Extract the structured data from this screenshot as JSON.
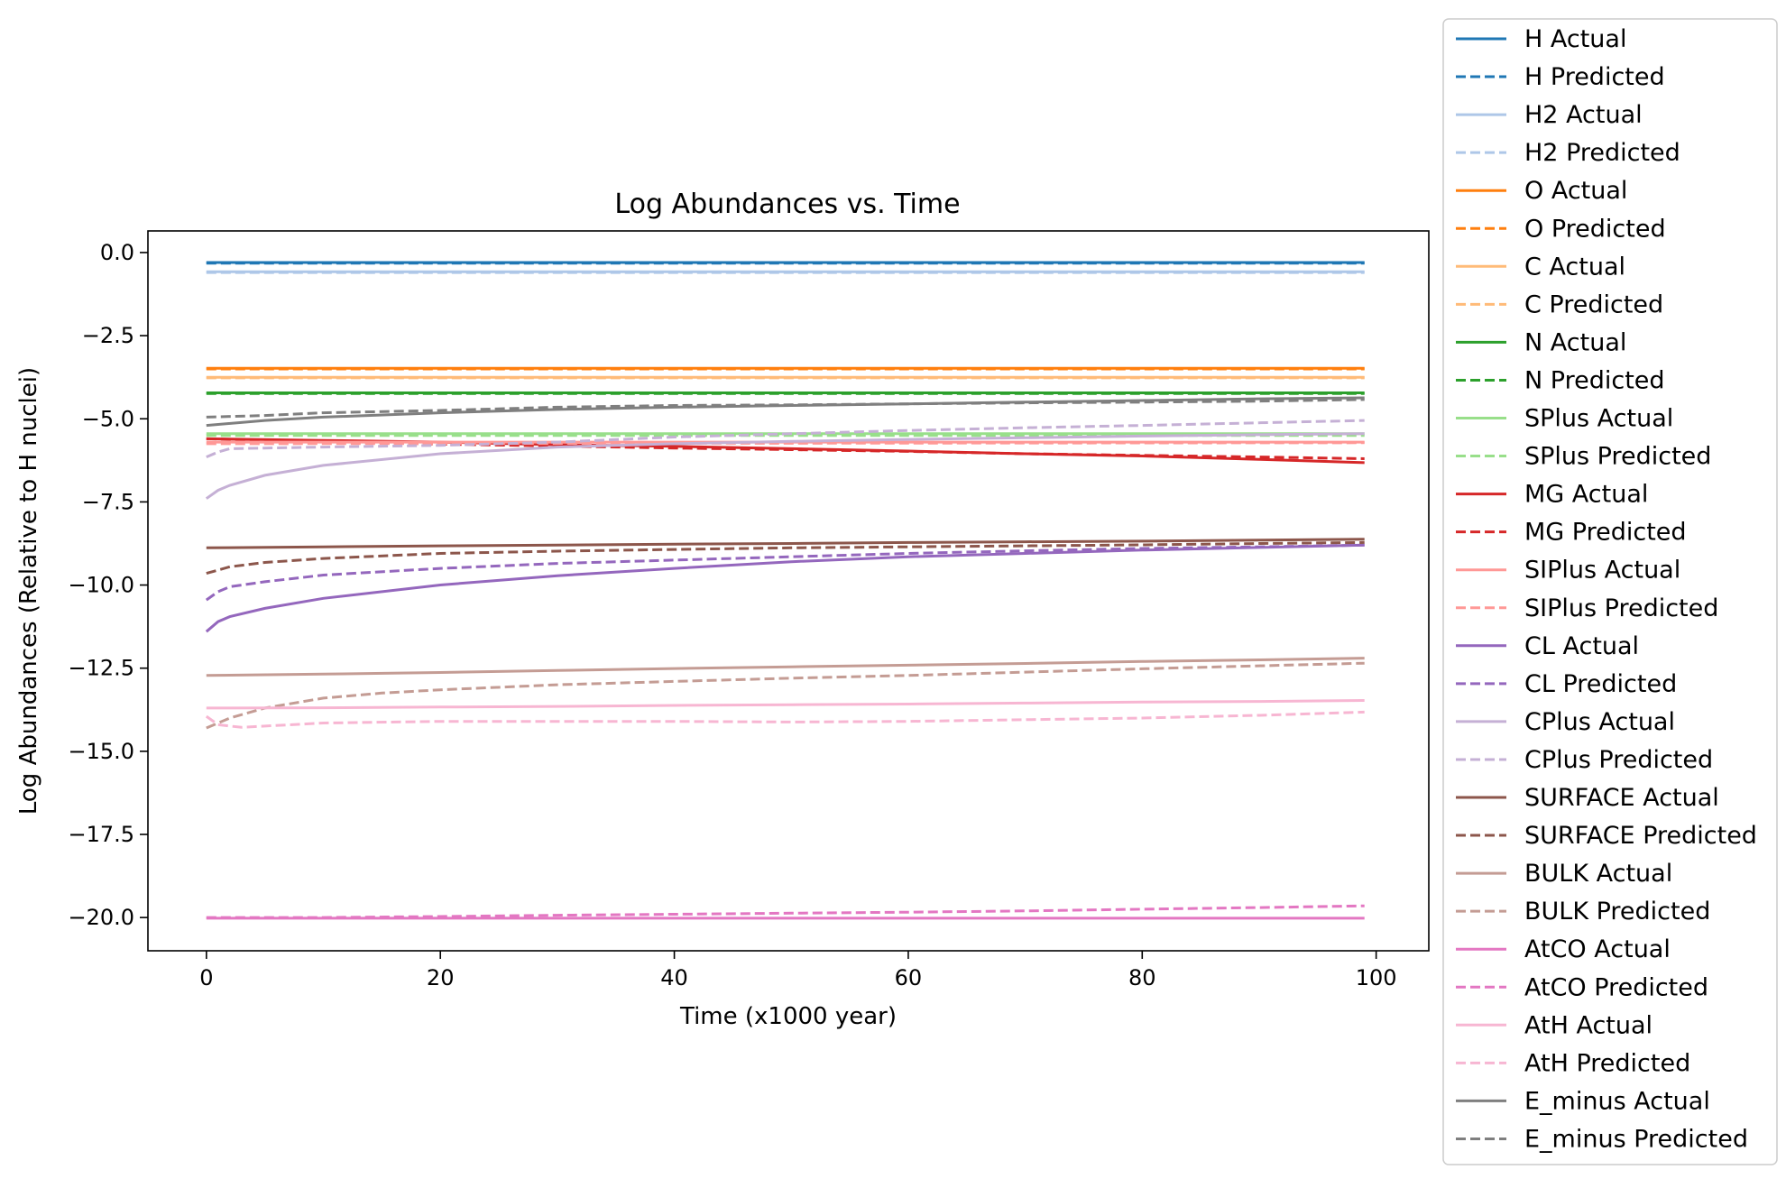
{
  "chart_data": {
    "type": "line",
    "title": "Log Abundances vs. Time",
    "xlabel": "Time (x1000 year)",
    "ylabel": "Log Abundances (Relative to H nuclei)",
    "xlim": [
      -5,
      104.5
    ],
    "ylim": [
      -21.0,
      0.65
    ],
    "xticks": [
      0,
      20,
      40,
      60,
      80,
      100
    ],
    "xtick_labels": [
      "0",
      "20",
      "40",
      "60",
      "80",
      "100"
    ],
    "yticks": [
      0.0,
      -2.5,
      -5.0,
      -7.5,
      -10.0,
      -12.5,
      -15.0,
      -17.5,
      -20.0
    ],
    "ytick_labels": [
      "0.0",
      "−2.5",
      "−5.0",
      "−7.5",
      "−10.0",
      "−12.5",
      "−15.0",
      "−17.5",
      "−20.0"
    ],
    "grid": false,
    "legend_position": "outside-right",
    "series": [
      {
        "name": "H Actual",
        "color": "#1f77b4",
        "style": "solid",
        "points": [
          [
            0,
            -0.3
          ],
          [
            99,
            -0.3
          ]
        ]
      },
      {
        "name": "H Predicted",
        "color": "#1f77b4",
        "style": "dashed",
        "points": [
          [
            0,
            -0.32
          ],
          [
            99,
            -0.32
          ]
        ]
      },
      {
        "name": "H2 Actual",
        "color": "#aec7e8",
        "style": "solid",
        "points": [
          [
            0,
            -0.58
          ],
          [
            99,
            -0.58
          ]
        ]
      },
      {
        "name": "H2 Predicted",
        "color": "#aec7e8",
        "style": "dashed",
        "points": [
          [
            0,
            -0.6
          ],
          [
            99,
            -0.6
          ]
        ]
      },
      {
        "name": "O Actual",
        "color": "#ff7f0e",
        "style": "solid",
        "points": [
          [
            0,
            -3.48
          ],
          [
            99,
            -3.48
          ]
        ]
      },
      {
        "name": "O Predicted",
        "color": "#ff7f0e",
        "style": "dashed",
        "points": [
          [
            0,
            -3.5
          ],
          [
            99,
            -3.5
          ]
        ]
      },
      {
        "name": "C Actual",
        "color": "#ffbb78",
        "style": "solid",
        "points": [
          [
            0,
            -3.75
          ],
          [
            99,
            -3.75
          ]
        ]
      },
      {
        "name": "C Predicted",
        "color": "#ffbb78",
        "style": "dashed",
        "points": [
          [
            0,
            -3.77
          ],
          [
            99,
            -3.77
          ]
        ]
      },
      {
        "name": "N Actual",
        "color": "#2ca02c",
        "style": "solid",
        "points": [
          [
            0,
            -4.22
          ],
          [
            99,
            -4.22
          ]
        ]
      },
      {
        "name": "N Predicted",
        "color": "#2ca02c",
        "style": "dashed",
        "points": [
          [
            0,
            -4.24
          ],
          [
            99,
            -4.24
          ]
        ]
      },
      {
        "name": "SPlus Actual",
        "color": "#98df8a",
        "style": "solid",
        "points": [
          [
            0,
            -5.45
          ],
          [
            99,
            -5.45
          ]
        ]
      },
      {
        "name": "SPlus Predicted",
        "color": "#98df8a",
        "style": "dashed",
        "points": [
          [
            0,
            -5.5
          ],
          [
            99,
            -5.5
          ]
        ]
      },
      {
        "name": "MG Actual",
        "color": "#d62728",
        "style": "solid",
        "points": [
          [
            0,
            -5.6
          ],
          [
            10,
            -5.65
          ],
          [
            20,
            -5.7
          ],
          [
            30,
            -5.78
          ],
          [
            40,
            -5.83
          ],
          [
            50,
            -5.9
          ],
          [
            60,
            -5.97
          ],
          [
            70,
            -6.05
          ],
          [
            80,
            -6.12
          ],
          [
            90,
            -6.22
          ],
          [
            99,
            -6.32
          ]
        ]
      },
      {
        "name": "MG Predicted",
        "color": "#d62728",
        "style": "dashed",
        "points": [
          [
            0,
            -5.6
          ],
          [
            10,
            -5.68
          ],
          [
            20,
            -5.76
          ],
          [
            30,
            -5.82
          ],
          [
            40,
            -5.88
          ],
          [
            50,
            -5.93
          ],
          [
            60,
            -5.98
          ],
          [
            70,
            -6.05
          ],
          [
            80,
            -6.1
          ],
          [
            90,
            -6.15
          ],
          [
            99,
            -6.2
          ]
        ]
      },
      {
        "name": "SIPlus Actual",
        "color": "#ff9896",
        "style": "solid",
        "points": [
          [
            0,
            -5.7
          ],
          [
            99,
            -5.7
          ]
        ]
      },
      {
        "name": "SIPlus Predicted",
        "color": "#ff9896",
        "style": "dashed",
        "points": [
          [
            0,
            -5.75
          ],
          [
            99,
            -5.72
          ]
        ]
      },
      {
        "name": "CL Actual",
        "color": "#9467bd",
        "style": "solid",
        "points": [
          [
            0,
            -11.4
          ],
          [
            1,
            -11.1
          ],
          [
            2,
            -10.95
          ],
          [
            5,
            -10.7
          ],
          [
            10,
            -10.4
          ],
          [
            20,
            -10.0
          ],
          [
            30,
            -9.72
          ],
          [
            40,
            -9.5
          ],
          [
            50,
            -9.3
          ],
          [
            60,
            -9.15
          ],
          [
            70,
            -9.05
          ],
          [
            80,
            -8.95
          ],
          [
            90,
            -8.87
          ],
          [
            99,
            -8.8
          ]
        ]
      },
      {
        "name": "CL Predicted",
        "color": "#9467bd",
        "style": "dashed",
        "points": [
          [
            0,
            -10.45
          ],
          [
            1,
            -10.2
          ],
          [
            2,
            -10.05
          ],
          [
            5,
            -9.9
          ],
          [
            10,
            -9.7
          ],
          [
            20,
            -9.5
          ],
          [
            30,
            -9.35
          ],
          [
            40,
            -9.25
          ],
          [
            50,
            -9.15
          ],
          [
            60,
            -9.05
          ],
          [
            70,
            -8.97
          ],
          [
            80,
            -8.9
          ],
          [
            90,
            -8.85
          ],
          [
            99,
            -8.8
          ]
        ]
      },
      {
        "name": "CPlus Actual",
        "color": "#c5b0d5",
        "style": "solid",
        "points": [
          [
            0,
            -7.4
          ],
          [
            1,
            -7.15
          ],
          [
            2,
            -7.0
          ],
          [
            5,
            -6.7
          ],
          [
            10,
            -6.4
          ],
          [
            20,
            -6.05
          ],
          [
            30,
            -5.85
          ],
          [
            40,
            -5.75
          ],
          [
            50,
            -5.68
          ],
          [
            60,
            -5.62
          ],
          [
            70,
            -5.57
          ],
          [
            80,
            -5.52
          ],
          [
            90,
            -5.48
          ],
          [
            99,
            -5.45
          ]
        ]
      },
      {
        "name": "CPlus Predicted",
        "color": "#c5b0d5",
        "style": "dashed",
        "points": [
          [
            0,
            -6.15
          ],
          [
            1,
            -6.0
          ],
          [
            2,
            -5.9
          ],
          [
            5,
            -5.88
          ],
          [
            10,
            -5.85
          ],
          [
            20,
            -5.8
          ],
          [
            30,
            -5.7
          ],
          [
            40,
            -5.55
          ],
          [
            50,
            -5.45
          ],
          [
            60,
            -5.35
          ],
          [
            70,
            -5.27
          ],
          [
            80,
            -5.2
          ],
          [
            90,
            -5.12
          ],
          [
            99,
            -5.05
          ]
        ]
      },
      {
        "name": "SURFACE Actual",
        "color": "#8c564b",
        "style": "solid",
        "points": [
          [
            0,
            -8.88
          ],
          [
            10,
            -8.85
          ],
          [
            20,
            -8.82
          ],
          [
            30,
            -8.8
          ],
          [
            40,
            -8.77
          ],
          [
            50,
            -8.75
          ],
          [
            60,
            -8.72
          ],
          [
            70,
            -8.7
          ],
          [
            80,
            -8.68
          ],
          [
            90,
            -8.65
          ],
          [
            99,
            -8.62
          ]
        ]
      },
      {
        "name": "SURFACE Predicted",
        "color": "#8c564b",
        "style": "dashed",
        "points": [
          [
            0,
            -9.65
          ],
          [
            1,
            -9.55
          ],
          [
            2,
            -9.45
          ],
          [
            5,
            -9.32
          ],
          [
            10,
            -9.2
          ],
          [
            20,
            -9.05
          ],
          [
            30,
            -8.98
          ],
          [
            40,
            -8.93
          ],
          [
            50,
            -8.88
          ],
          [
            60,
            -8.85
          ],
          [
            70,
            -8.82
          ],
          [
            80,
            -8.79
          ],
          [
            90,
            -8.75
          ],
          [
            99,
            -8.72
          ]
        ]
      },
      {
        "name": "BULK Actual",
        "color": "#c49c94",
        "style": "solid",
        "points": [
          [
            0,
            -12.72
          ],
          [
            10,
            -12.68
          ],
          [
            20,
            -12.63
          ],
          [
            30,
            -12.57
          ],
          [
            40,
            -12.51
          ],
          [
            50,
            -12.46
          ],
          [
            60,
            -12.41
          ],
          [
            70,
            -12.36
          ],
          [
            80,
            -12.3
          ],
          [
            90,
            -12.25
          ],
          [
            99,
            -12.2
          ]
        ]
      },
      {
        "name": "BULK Predicted",
        "color": "#c49c94",
        "style": "dashed",
        "points": [
          [
            0,
            -14.3
          ],
          [
            2,
            -14.0
          ],
          [
            5,
            -13.7
          ],
          [
            10,
            -13.4
          ],
          [
            15,
            -13.25
          ],
          [
            20,
            -13.15
          ],
          [
            30,
            -13.0
          ],
          [
            40,
            -12.9
          ],
          [
            50,
            -12.8
          ],
          [
            60,
            -12.72
          ],
          [
            70,
            -12.62
          ],
          [
            80,
            -12.52
          ],
          [
            90,
            -12.43
          ],
          [
            99,
            -12.35
          ]
        ]
      },
      {
        "name": "AtCO Actual",
        "color": "#e377c2",
        "style": "solid",
        "points": [
          [
            0,
            -20.02
          ],
          [
            99,
            -20.02
          ]
        ]
      },
      {
        "name": "AtCO Predicted",
        "color": "#e377c2",
        "style": "dashed",
        "points": [
          [
            0,
            -20.0
          ],
          [
            10,
            -20.0
          ],
          [
            20,
            -19.97
          ],
          [
            30,
            -19.93
          ],
          [
            40,
            -19.9
          ],
          [
            50,
            -19.87
          ],
          [
            60,
            -19.84
          ],
          [
            70,
            -19.8
          ],
          [
            80,
            -19.75
          ],
          [
            90,
            -19.7
          ],
          [
            99,
            -19.65
          ]
        ]
      },
      {
        "name": "AtH Actual",
        "color": "#f7b6d2",
        "style": "solid",
        "points": [
          [
            0,
            -13.7
          ],
          [
            10,
            -13.69
          ],
          [
            20,
            -13.67
          ],
          [
            30,
            -13.65
          ],
          [
            40,
            -13.62
          ],
          [
            50,
            -13.6
          ],
          [
            60,
            -13.58
          ],
          [
            70,
            -13.55
          ],
          [
            80,
            -13.52
          ],
          [
            90,
            -13.5
          ],
          [
            99,
            -13.47
          ]
        ]
      },
      {
        "name": "AtH Predicted",
        "color": "#f7b6d2",
        "style": "dashed",
        "points": [
          [
            0,
            -13.95
          ],
          [
            1,
            -14.2
          ],
          [
            3,
            -14.28
          ],
          [
            10,
            -14.15
          ],
          [
            20,
            -14.1
          ],
          [
            30,
            -14.1
          ],
          [
            40,
            -14.1
          ],
          [
            50,
            -14.12
          ],
          [
            60,
            -14.1
          ],
          [
            70,
            -14.05
          ],
          [
            80,
            -14.0
          ],
          [
            90,
            -13.92
          ],
          [
            99,
            -13.82
          ]
        ]
      },
      {
        "name": "E_minus Actual",
        "color": "#7f7f7f",
        "style": "solid",
        "points": [
          [
            0,
            -5.2
          ],
          [
            5,
            -5.05
          ],
          [
            10,
            -4.95
          ],
          [
            20,
            -4.82
          ],
          [
            30,
            -4.72
          ],
          [
            40,
            -4.65
          ],
          [
            50,
            -4.6
          ],
          [
            60,
            -4.55
          ],
          [
            70,
            -4.5
          ],
          [
            80,
            -4.45
          ],
          [
            90,
            -4.4
          ],
          [
            99,
            -4.37
          ]
        ]
      },
      {
        "name": "E_minus Predicted",
        "color": "#7f7f7f",
        "style": "dashed",
        "points": [
          [
            0,
            -4.95
          ],
          [
            5,
            -4.9
          ],
          [
            10,
            -4.82
          ],
          [
            20,
            -4.75
          ],
          [
            30,
            -4.65
          ],
          [
            40,
            -4.6
          ],
          [
            50,
            -4.58
          ],
          [
            60,
            -4.55
          ],
          [
            70,
            -4.52
          ],
          [
            80,
            -4.5
          ],
          [
            90,
            -4.47
          ],
          [
            99,
            -4.42
          ]
        ]
      }
    ]
  }
}
